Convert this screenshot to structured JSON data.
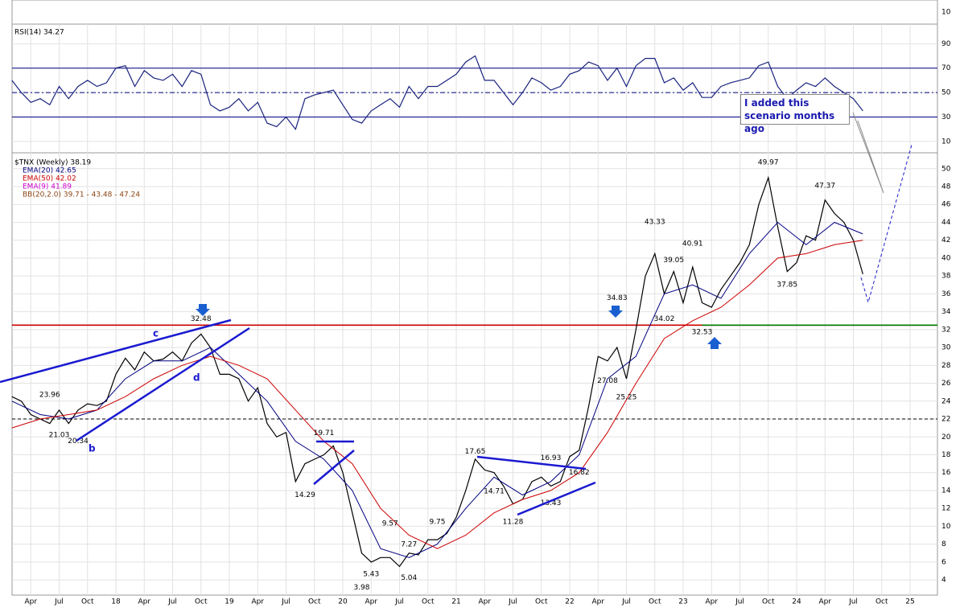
{
  "chart_data": [
    {
      "type": "line",
      "title": "RSI(14) 34.27",
      "x": [
        "2017-02",
        "2017-03",
        "2017-04",
        "2017-05",
        "2017-06",
        "2017-07",
        "2017-08",
        "2017-09",
        "2017-10",
        "2017-11",
        "2017-12",
        "2018-01",
        "2018-02",
        "2018-03",
        "2018-04",
        "2018-05",
        "2018-06",
        "2018-07",
        "2018-08",
        "2018-09",
        "2018-10",
        "2018-11",
        "2018-12",
        "2019-01",
        "2019-02",
        "2019-03",
        "2019-04",
        "2019-05",
        "2019-06",
        "2019-07",
        "2019-08",
        "2019-09",
        "2019-10",
        "2019-11",
        "2019-12",
        "2020-01",
        "2020-02",
        "2020-03",
        "2020-04",
        "2020-05",
        "2020-06",
        "2020-07",
        "2020-08",
        "2020-09",
        "2020-10",
        "2020-11",
        "2020-12",
        "2021-01",
        "2021-02",
        "2021-03",
        "2021-04",
        "2021-05",
        "2021-06",
        "2021-07",
        "2021-08",
        "2021-09",
        "2021-10",
        "2021-11",
        "2021-12",
        "2022-01",
        "2022-02",
        "2022-03",
        "2022-04",
        "2022-05",
        "2022-06",
        "2022-07",
        "2022-08",
        "2022-09",
        "2022-10",
        "2022-11",
        "2022-12",
        "2023-01",
        "2023-02",
        "2023-03",
        "2023-04",
        "2023-05",
        "2023-06",
        "2023-07",
        "2023-08",
        "2023-09",
        "2023-10",
        "2023-11",
        "2023-12",
        "2024-01",
        "2024-02",
        "2024-03",
        "2024-04",
        "2024-05",
        "2024-06",
        "2024-07",
        "2024-08"
      ],
      "series": [
        {
          "color": "#1a237e",
          "values": [
            60,
            50,
            42,
            45,
            40,
            55,
            45,
            55,
            60,
            55,
            58,
            70,
            72,
            55,
            68,
            62,
            60,
            65,
            55,
            68,
            65,
            40,
            35,
            38,
            45,
            35,
            42,
            25,
            22,
            30,
            20,
            45,
            48,
            50,
            52,
            40,
            28,
            25,
            35,
            40,
            45,
            38,
            55,
            45,
            55,
            55,
            60,
            65,
            75,
            80,
            60,
            60,
            50,
            40,
            50,
            62,
            58,
            52,
            55,
            65,
            68,
            75,
            72,
            60,
            70,
            55,
            72,
            78,
            78,
            58,
            62,
            52,
            58,
            46,
            46,
            55,
            58,
            60,
            62,
            72,
            75,
            55,
            45,
            52,
            58,
            55,
            62,
            55,
            50,
            45,
            35
          ]
        }
      ],
      "ylim": [
        0.7,
        104.7
      ],
      "yticks": [
        10,
        30,
        50,
        70,
        90
      ],
      "levels": [
        {
          "value": 30,
          "color": "#000080"
        },
        {
          "value": 50,
          "color": "#000080",
          "dash": true
        },
        {
          "value": 70,
          "color": "#000080"
        }
      ]
    },
    {
      "type": "line",
      "title": "$TNX (Weekly) 38.19",
      "x": [
        "2017-02",
        "2017-03",
        "2017-04",
        "2017-05",
        "2017-06",
        "2017-07",
        "2017-08",
        "2017-09",
        "2017-10",
        "2017-11",
        "2017-12",
        "2018-01",
        "2018-02",
        "2018-03",
        "2018-04",
        "2018-05",
        "2018-06",
        "2018-07",
        "2018-08",
        "2018-09",
        "2018-10",
        "2018-11",
        "2018-12",
        "2019-01",
        "2019-02",
        "2019-03",
        "2019-04",
        "2019-05",
        "2019-06",
        "2019-07",
        "2019-08",
        "2019-09",
        "2019-10",
        "2019-11",
        "2019-12",
        "2020-01",
        "2020-02",
        "2020-03",
        "2020-04",
        "2020-05",
        "2020-06",
        "2020-07",
        "2020-08",
        "2020-09",
        "2020-10",
        "2020-11",
        "2020-12",
        "2021-01",
        "2021-02",
        "2021-03",
        "2021-04",
        "2021-05",
        "2021-06",
        "2021-07",
        "2021-08",
        "2021-09",
        "2021-10",
        "2021-11",
        "2021-12",
        "2022-01",
        "2022-02",
        "2022-03",
        "2022-04",
        "2022-05",
        "2022-06",
        "2022-07",
        "2022-08",
        "2022-09",
        "2022-10",
        "2022-11",
        "2022-12",
        "2023-01",
        "2023-02",
        "2023-03",
        "2023-04",
        "2023-05",
        "2023-06",
        "2023-07",
        "2023-08",
        "2023-09",
        "2023-10",
        "2023-11",
        "2023-12",
        "2024-01",
        "2024-02",
        "2024-03",
        "2024-04",
        "2024-05",
        "2024-06",
        "2024-07",
        "2024-08"
      ],
      "series": [
        {
          "color": "#000000",
          "values": [
            24.5,
            24,
            22.5,
            22,
            21.5,
            23,
            21.5,
            23,
            23.7,
            23.5,
            24,
            27,
            28.8,
            27.5,
            29.5,
            28.5,
            28.7,
            29.5,
            28.5,
            30.5,
            31.5,
            30,
            27,
            27,
            26.5,
            24,
            25.5,
            21.5,
            20,
            20.5,
            15,
            17,
            17.5,
            18,
            19,
            16,
            11.5,
            7,
            6,
            6.5,
            6.5,
            5.5,
            7,
            6.8,
            8.5,
            8.5,
            9.2,
            11,
            14,
            17.5,
            16.3,
            16,
            14.5,
            12.5,
            13,
            15,
            15.5,
            14.5,
            15,
            17.8,
            18.5,
            23.4,
            29,
            28.5,
            30,
            26.5,
            32,
            38,
            40.5,
            36,
            38.5,
            35,
            39,
            35,
            34.5,
            36.5,
            38,
            39.5,
            41.5,
            46,
            49,
            43.5,
            38.5,
            39.5,
            42.5,
            42,
            46.5,
            45,
            44,
            42,
            38.2
          ]
        },
        {
          "name": "EMA(20) 42.65",
          "color": "#000080",
          "x": [
            "2017-02",
            "2017-05",
            "2017-08",
            "2017-11",
            "2018-02",
            "2018-05",
            "2018-08",
            "2018-11",
            "2019-02",
            "2019-05",
            "2019-08",
            "2019-11",
            "2020-02",
            "2020-05",
            "2020-08",
            "2020-11",
            "2021-02",
            "2021-05",
            "2021-08",
            "2021-11",
            "2022-02",
            "2022-05",
            "2022-08",
            "2022-11",
            "2023-02",
            "2023-05",
            "2023-08",
            "2023-11",
            "2024-02",
            "2024-05",
            "2024-08"
          ],
          "values": [
            24,
            22.5,
            22,
            23,
            26.5,
            28.5,
            28.5,
            30,
            27,
            24,
            19.5,
            17.5,
            14,
            7.5,
            6.5,
            8,
            12,
            15.5,
            13.5,
            15,
            18,
            26.5,
            29,
            36,
            37,
            35.5,
            40.5,
            44,
            41.5,
            44,
            42.7
          ]
        },
        {
          "name": "EMA(50) 42.02",
          "color": "#cc0000",
          "x": [
            "2017-02",
            "2017-05",
            "2017-08",
            "2017-11",
            "2018-02",
            "2018-05",
            "2018-08",
            "2018-11",
            "2019-02",
            "2019-05",
            "2019-08",
            "2019-11",
            "2020-02",
            "2020-05",
            "2020-08",
            "2020-11",
            "2021-02",
            "2021-05",
            "2021-08",
            "2021-11",
            "2022-02",
            "2022-05",
            "2022-08",
            "2022-11",
            "2023-02",
            "2023-05",
            "2023-08",
            "2023-11",
            "2024-02",
            "2024-05",
            "2024-08"
          ],
          "values": [
            21,
            22,
            22.5,
            23,
            24.5,
            26.5,
            28,
            29,
            28,
            26.5,
            23,
            19.5,
            17,
            12,
            9,
            7.5,
            9,
            11.5,
            13,
            14,
            16,
            20.5,
            26,
            31,
            33,
            34.5,
            37,
            40,
            40.5,
            41.5,
            42
          ]
        }
      ],
      "legend_extra": [
        {
          "label": "EMA(9) 41.89",
          "color": "#cc00cc"
        },
        {
          "label": "BB(20,2.0) 39.71 - 43.48 - 47.24",
          "color": "#8b4513"
        }
      ],
      "ylim": [
        2.3,
        51.6
      ],
      "yticks": [
        4,
        6,
        8,
        10,
        12,
        14,
        16,
        18,
        20,
        22,
        24,
        26,
        28,
        30,
        32,
        34,
        36,
        38,
        40,
        42,
        44,
        46,
        48,
        50
      ],
      "levels": [
        {
          "value": 32.5,
          "color": "#cc0000"
        },
        {
          "value": 32.5,
          "color": "#008000",
          "from": "2023-03"
        },
        {
          "value": 22,
          "color": "#000000",
          "dash": true
        }
      ],
      "highs": [
        {
          "x": "2017-06",
          "value": 23.96
        },
        {
          "x": "2018-10",
          "value": 32.48
        },
        {
          "x": "2019-11",
          "value": 19.71
        },
        {
          "x": "2020-06",
          "value": 9.57
        },
        {
          "x": "2020-08",
          "value": 7.27
        },
        {
          "x": "2020-11",
          "value": 9.75
        },
        {
          "x": "2021-03",
          "value": 17.65
        },
        {
          "x": "2021-11",
          "value": 16.93
        },
        {
          "x": "2022-06",
          "value": 34.83
        },
        {
          "x": "2022-10",
          "value": 43.33
        },
        {
          "x": "2022-12",
          "value": 39.05
        },
        {
          "x": "2023-02",
          "value": 40.91
        },
        {
          "x": "2023-10",
          "value": 49.97
        },
        {
          "x": "2024-04",
          "value": 47.37
        }
      ],
      "lows": [
        {
          "x": "2017-07",
          "value": 21.03
        },
        {
          "x": "2017-09",
          "value": 20.34
        },
        {
          "x": "2019-09",
          "value": 14.29
        },
        {
          "x": "2020-03",
          "value": 3.98
        },
        {
          "x": "2020-04",
          "value": 5.43
        },
        {
          "x": "2020-08",
          "value": 5.04
        },
        {
          "x": "2021-05",
          "value": 14.71
        },
        {
          "x": "2021-07",
          "value": 11.28
        },
        {
          "x": "2021-11",
          "value": 13.43
        },
        {
          "x": "2022-02",
          "value": 16.82
        },
        {
          "x": "2022-05",
          "value": 27.08
        },
        {
          "x": "2022-07",
          "value": 25.25
        },
        {
          "x": "2022-11",
          "value": 34.02
        },
        {
          "x": "2023-03",
          "value": 32.53
        },
        {
          "x": "2023-12",
          "value": 37.85
        }
      ],
      "xticks": [
        {
          "value": "2017-04",
          "label": "Apr"
        },
        {
          "value": "2017-07",
          "label": "Jul"
        },
        {
          "value": "2017-10",
          "label": "Oct"
        },
        {
          "value": "2018-01",
          "label": "18"
        },
        {
          "value": "2018-04",
          "label": "Apr"
        },
        {
          "value": "2018-07",
          "label": "Jul"
        },
        {
          "value": "2018-10",
          "label": "Oct"
        },
        {
          "value": "2019-01",
          "label": "19"
        },
        {
          "value": "2019-04",
          "label": "Apr"
        },
        {
          "value": "2019-07",
          "label": "Jul"
        },
        {
          "value": "2019-10",
          "label": "Oct"
        },
        {
          "value": "2020-01",
          "label": "20"
        },
        {
          "value": "2020-04",
          "label": "Apr"
        },
        {
          "value": "2020-07",
          "label": "Jul"
        },
        {
          "value": "2020-10",
          "label": "Oct"
        },
        {
          "value": "2021-01",
          "label": "21"
        },
        {
          "value": "2021-04",
          "label": "Apr"
        },
        {
          "value": "2021-07",
          "label": "Jul"
        },
        {
          "value": "2021-10",
          "label": "Oct"
        },
        {
          "value": "2022-01",
          "label": "22"
        },
        {
          "value": "2022-04",
          "label": "Apr"
        },
        {
          "value": "2022-07",
          "label": "Jul"
        },
        {
          "value": "2022-10",
          "label": "Oct"
        },
        {
          "value": "2023-01",
          "label": "23"
        },
        {
          "value": "2023-04",
          "label": "Apr"
        },
        {
          "value": "2023-07",
          "label": "Jul"
        },
        {
          "value": "2023-10",
          "label": "Oct"
        },
        {
          "value": "2024-01",
          "label": "24"
        },
        {
          "value": "2024-04",
          "label": "Apr"
        },
        {
          "value": "2024-07",
          "label": "Jul"
        },
        {
          "value": "2024-10",
          "label": "Oct"
        },
        {
          "value": "2025-01",
          "label": "25"
        }
      ],
      "letters": [
        "c",
        "b",
        "d"
      ],
      "callout": "I added this scenario months ago"
    },
    {
      "type": "volume",
      "yticks": [
        10
      ]
    }
  ]
}
